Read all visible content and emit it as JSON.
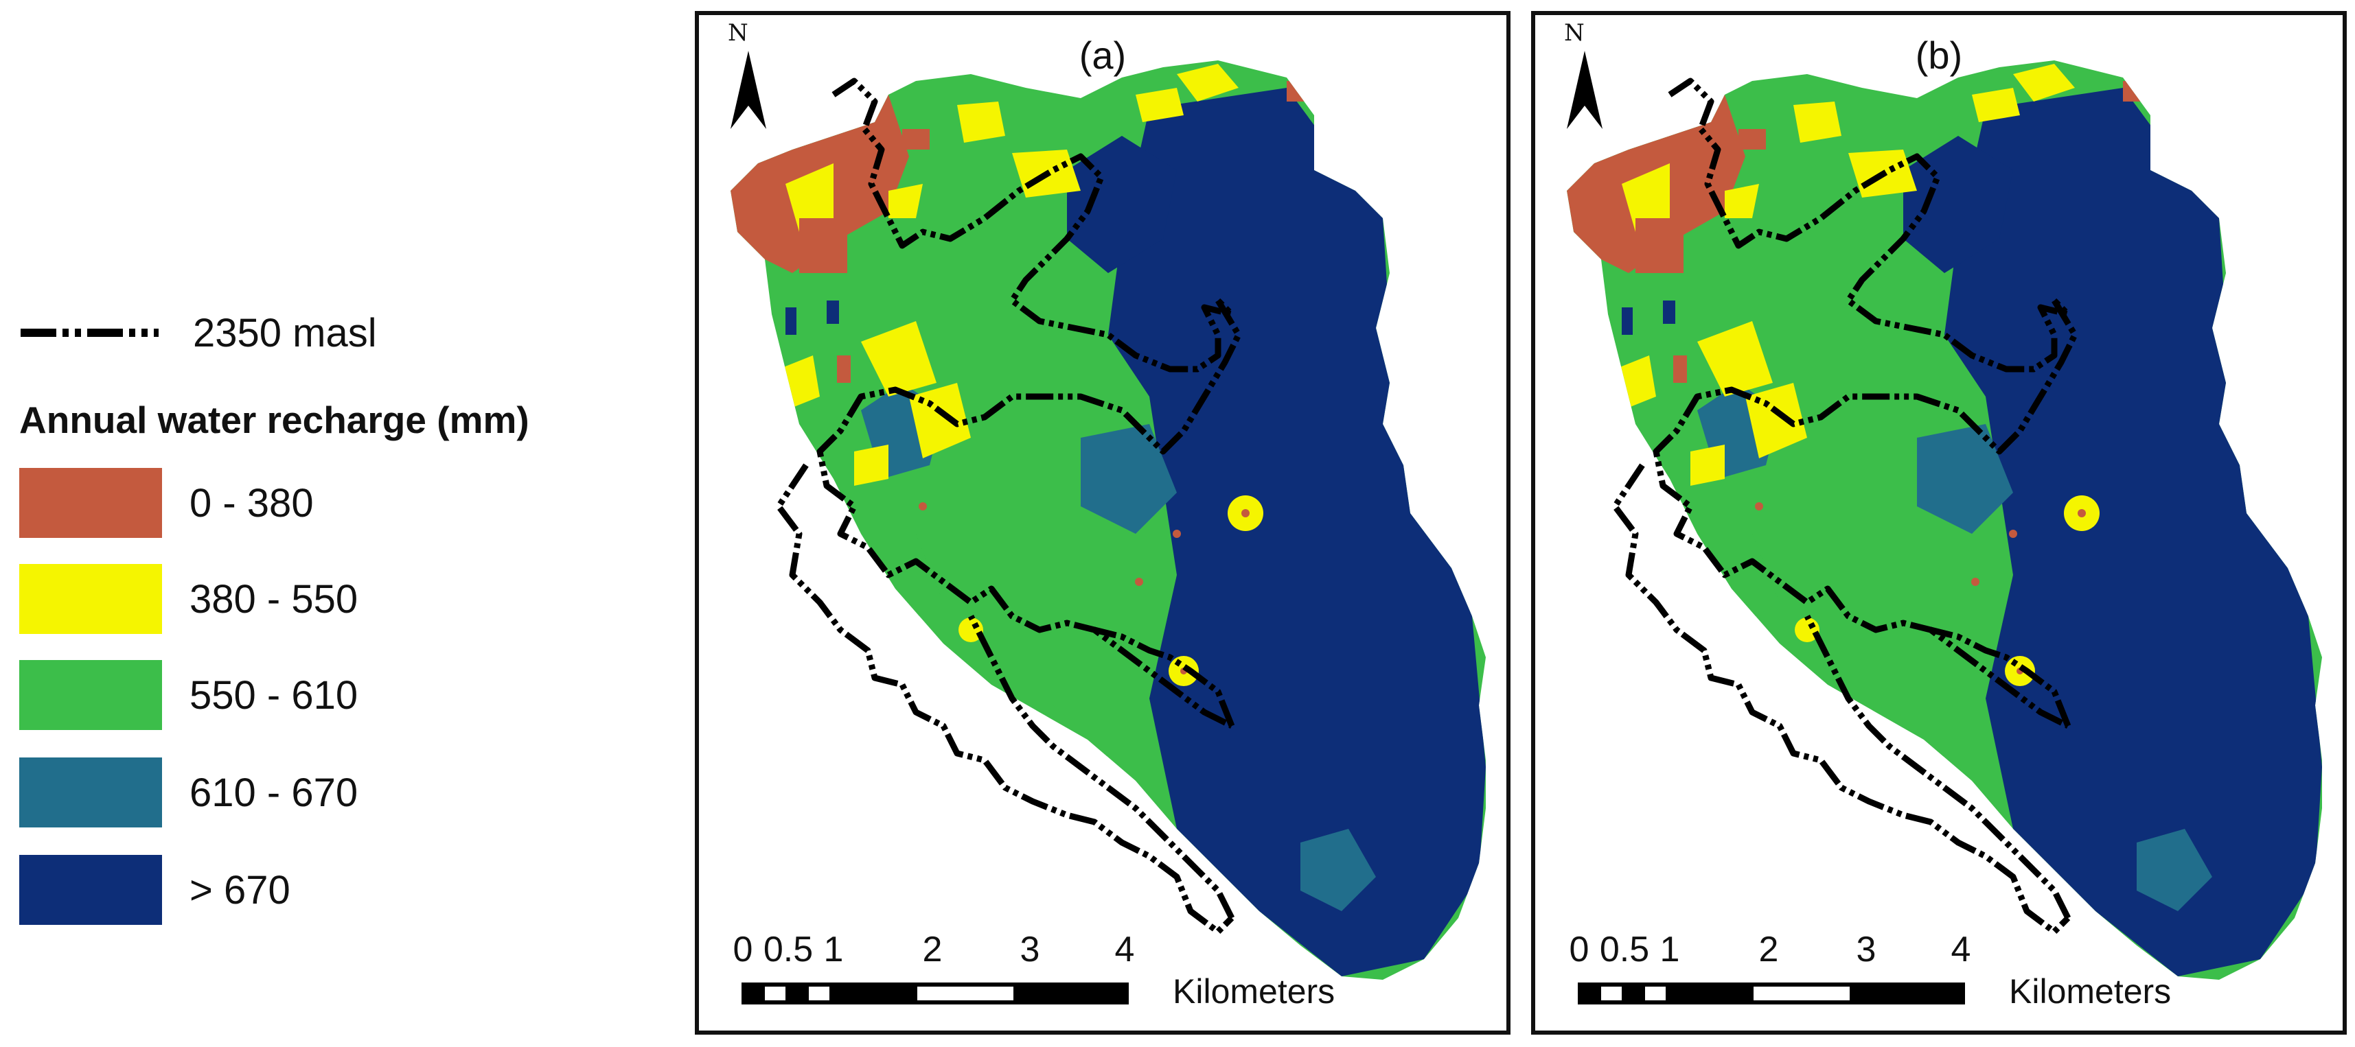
{
  "legend": {
    "contour_label": "2350 masl",
    "title": "Annual water recharge (mm)",
    "classes": [
      {
        "label": "0 - 380",
        "color": "#c45a3e"
      },
      {
        "label": "380 - 550",
        "color": "#f5f500"
      },
      {
        "label": "550 - 610",
        "color": "#3cbe4a"
      },
      {
        "label": "610 - 670",
        "color": "#216e8c"
      },
      {
        "label": "> 670",
        "color": "#0d2e78"
      }
    ]
  },
  "panels": [
    {
      "label": "(a)",
      "north": "N"
    },
    {
      "label": "(b)",
      "north": "N"
    }
  ],
  "scalebar": {
    "ticks": [
      "0",
      "0.5",
      "1",
      "2",
      "3",
      "4"
    ],
    "unit": "Kilometers"
  }
}
